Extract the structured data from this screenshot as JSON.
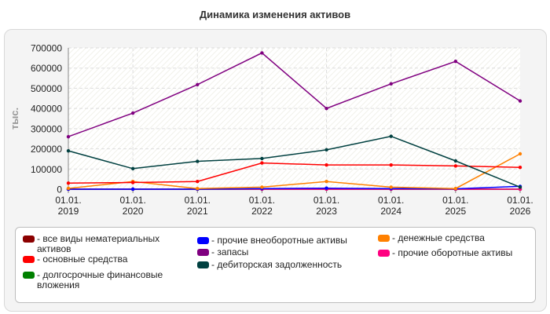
{
  "chart_data": {
    "type": "line",
    "title": "Динамика изменения активов",
    "ylabel": "тыс.",
    "xlabel": "",
    "ylim": [
      0,
      700000
    ],
    "yticks": [
      "0",
      "100000",
      "200000",
      "300000",
      "400000",
      "500000",
      "600000",
      "700000"
    ],
    "x": [
      "01.01. 2019",
      "01.01. 2020",
      "01.01. 2021",
      "01.01. 2022",
      "01.01. 2023",
      "01.01. 2024",
      "01.01. 2025",
      "01.01. 2026"
    ],
    "grid": true,
    "legend_position": "bottom",
    "series": [
      {
        "name": "- все виды нематериальных активов",
        "color": "#8b0000",
        "values": [
          0,
          0,
          0,
          0,
          0,
          0,
          0,
          0
        ]
      },
      {
        "name": "- основные средства",
        "color": "#ff0000",
        "values": [
          30000,
          33000,
          38000,
          130000,
          120000,
          120000,
          115000,
          108000
        ]
      },
      {
        "name": "- долгосрочные финансовые вложения",
        "color": "#008000",
        "values": [
          0,
          0,
          0,
          0,
          0,
          0,
          0,
          0
        ]
      },
      {
        "name": "- прочие внеоборотные активы",
        "color": "#0000ff",
        "values": [
          0,
          0,
          0,
          3000,
          5000,
          3000,
          2000,
          14000
        ]
      },
      {
        "name": "- запасы",
        "color": "#800080",
        "values": [
          260000,
          377000,
          518000,
          675000,
          400000,
          522000,
          633000,
          437000
        ]
      },
      {
        "name": "- дебиторская задолженность",
        "color": "#004040",
        "values": [
          190000,
          102000,
          138000,
          152000,
          195000,
          262000,
          140000,
          10000
        ]
      },
      {
        "name": "- денежные средства",
        "color": "#ff8000",
        "values": [
          4000,
          38000,
          3000,
          10000,
          38000,
          10000,
          3000,
          175000
        ]
      },
      {
        "name": "- прочие оборотные активы",
        "color": "#ff0080",
        "values": [
          0,
          0,
          0,
          0,
          0,
          0,
          0,
          0
        ]
      }
    ]
  }
}
